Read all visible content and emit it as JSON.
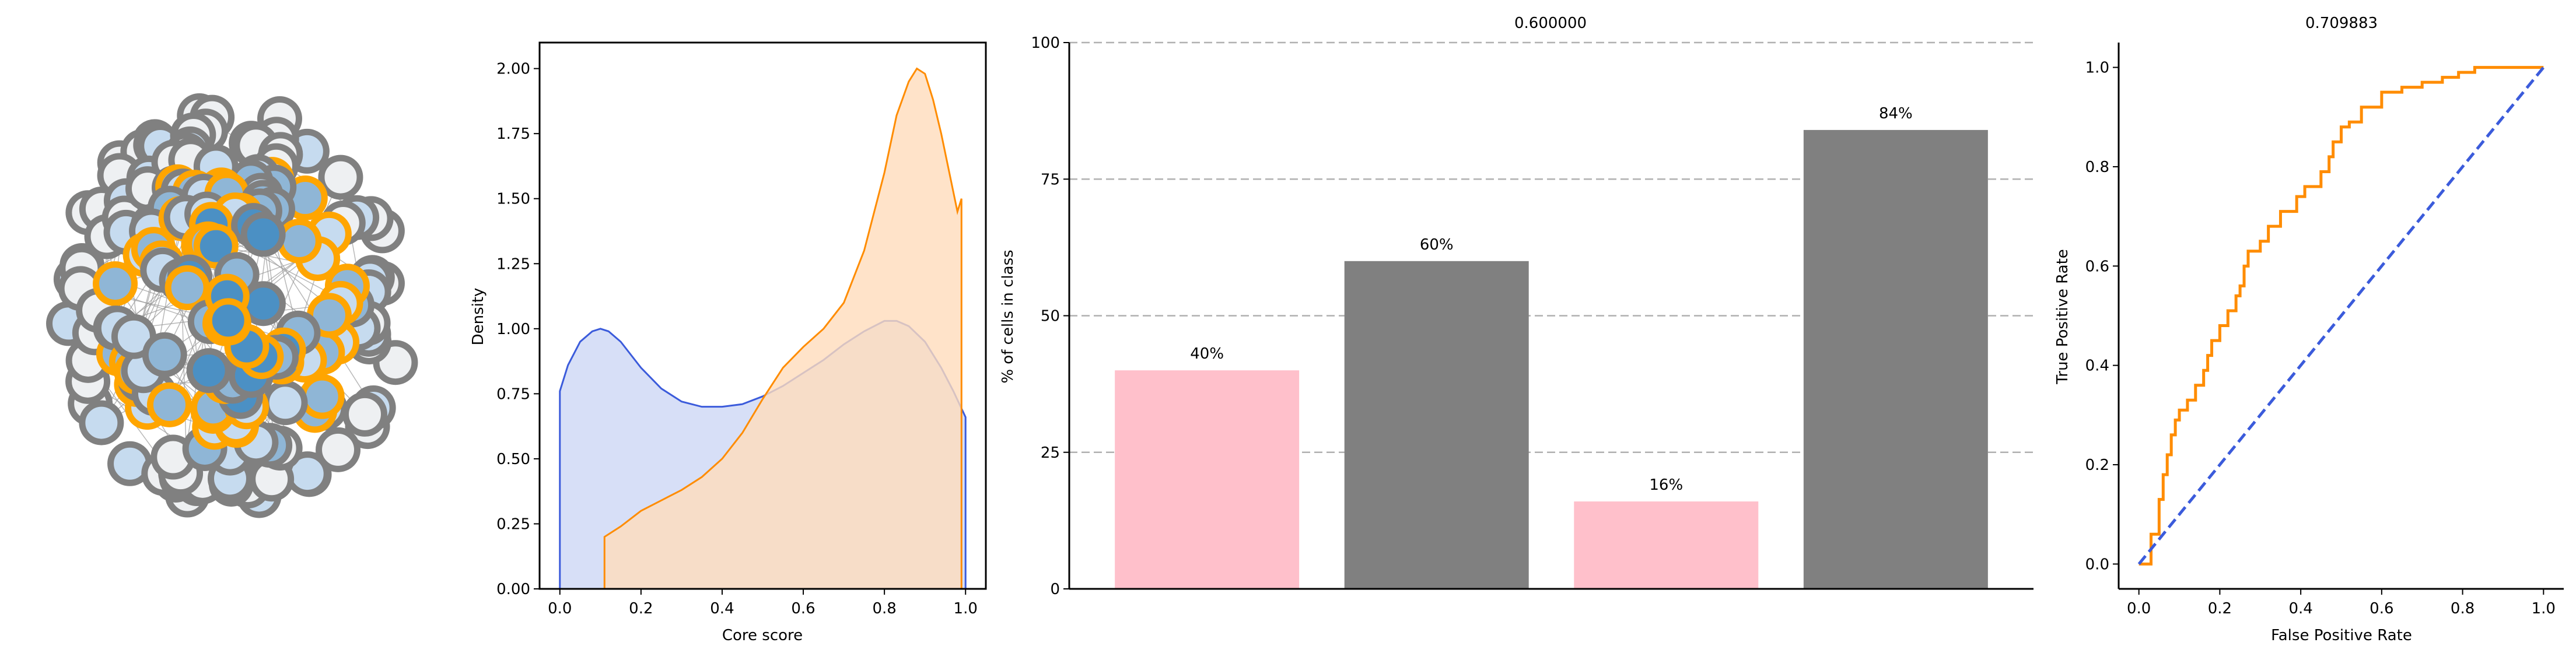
{
  "chart_data": [
    {
      "type": "network",
      "panel": "network",
      "node_colors": {
        "core_fill_dark": "#4b90c4",
        "core_fill_light": "#8fb6d6",
        "periphery_fill_light": "#c6dbef",
        "periphery_fill": "#eef0f2",
        "border_core": "#ffa500",
        "border_periphery": "#808080",
        "edge": "#9a9a9a"
      }
    },
    {
      "type": "area",
      "panel": "density",
      "xlabel": "Core score",
      "ylabel": "Density",
      "xlim": [
        -0.05,
        1.05
      ],
      "ylim": [
        0,
        2.1
      ],
      "xticks": [
        "0.0",
        "0.2",
        "0.4",
        "0.6",
        "0.8",
        "1.0"
      ],
      "yticks": [
        "0.00",
        "0.25",
        "0.50",
        "0.75",
        "1.00",
        "1.25",
        "1.50",
        "1.75",
        "2.00"
      ],
      "series": [
        {
          "color": "#3b5bdb",
          "fill": "#cdd7f5",
          "x": [
            0.0,
            0.02,
            0.05,
            0.08,
            0.1,
            0.12,
            0.15,
            0.2,
            0.25,
            0.3,
            0.35,
            0.4,
            0.45,
            0.5,
            0.55,
            0.6,
            0.65,
            0.7,
            0.75,
            0.8,
            0.83,
            0.86,
            0.9,
            0.94,
            0.97,
            1.0
          ],
          "y": [
            0.76,
            0.86,
            0.95,
            0.99,
            1.0,
            0.99,
            0.95,
            0.85,
            0.77,
            0.72,
            0.7,
            0.7,
            0.71,
            0.74,
            0.78,
            0.83,
            0.88,
            0.94,
            0.99,
            1.03,
            1.03,
            1.01,
            0.95,
            0.85,
            0.76,
            0.66
          ]
        },
        {
          "color": "#ff8c00",
          "fill": "#ffdcbb",
          "x": [
            0.11,
            0.15,
            0.2,
            0.25,
            0.3,
            0.35,
            0.4,
            0.45,
            0.5,
            0.55,
            0.6,
            0.65,
            0.7,
            0.75,
            0.8,
            0.83,
            0.86,
            0.88,
            0.9,
            0.92,
            0.94,
            0.96,
            0.98,
            0.99
          ],
          "y": [
            0.2,
            0.24,
            0.3,
            0.34,
            0.38,
            0.43,
            0.5,
            0.6,
            0.73,
            0.85,
            0.93,
            1.0,
            1.1,
            1.3,
            1.6,
            1.82,
            1.95,
            2.0,
            1.98,
            1.88,
            1.75,
            1.6,
            1.45,
            1.5
          ]
        }
      ]
    },
    {
      "type": "bar",
      "panel": "bars",
      "title": "0.600000",
      "ylabel": "% of cells in class",
      "ylim": [
        0,
        100
      ],
      "yticks": [
        "0",
        "25",
        "50",
        "75",
        "100"
      ],
      "values": [
        40,
        60,
        16,
        84
      ],
      "labels": [
        "40%",
        "60%",
        "16%",
        "84%"
      ],
      "colors": [
        "#ffc0cb",
        "#808080",
        "#ffc0cb",
        "#808080"
      ]
    },
    {
      "type": "line",
      "panel": "roc",
      "title": "0.709883",
      "xlabel": "False Positive Rate",
      "ylabel": "True Positive Rate",
      "xlim": [
        -0.05,
        1.05
      ],
      "ylim": [
        -0.05,
        1.05
      ],
      "xticks": [
        "0.0",
        "0.2",
        "0.4",
        "0.6",
        "0.8",
        "1.0"
      ],
      "yticks": [
        "0.0",
        "0.2",
        "0.4",
        "0.6",
        "0.8",
        "1.0"
      ],
      "series": [
        {
          "color": "#ff8c00",
          "x": [
            0.0,
            0.03,
            0.03,
            0.05,
            0.05,
            0.06,
            0.06,
            0.07,
            0.07,
            0.08,
            0.08,
            0.09,
            0.09,
            0.1,
            0.1,
            0.12,
            0.12,
            0.14,
            0.14,
            0.16,
            0.16,
            0.17,
            0.17,
            0.18,
            0.18,
            0.2,
            0.2,
            0.22,
            0.22,
            0.24,
            0.24,
            0.25,
            0.25,
            0.26,
            0.26,
            0.27,
            0.27,
            0.3,
            0.3,
            0.32,
            0.32,
            0.35,
            0.35,
            0.39,
            0.39,
            0.41,
            0.41,
            0.45,
            0.45,
            0.47,
            0.47,
            0.48,
            0.48,
            0.5,
            0.5,
            0.52,
            0.52,
            0.55,
            0.55,
            0.6,
            0.6,
            0.65,
            0.65,
            0.7,
            0.7,
            0.75,
            0.75,
            0.79,
            0.79,
            0.83,
            0.83,
            0.92,
            0.92,
            1.0
          ],
          "y": [
            0.0,
            0.0,
            0.06,
            0.06,
            0.13,
            0.13,
            0.18,
            0.18,
            0.22,
            0.22,
            0.26,
            0.26,
            0.29,
            0.29,
            0.31,
            0.31,
            0.33,
            0.33,
            0.36,
            0.36,
            0.39,
            0.39,
            0.42,
            0.42,
            0.45,
            0.45,
            0.48,
            0.48,
            0.51,
            0.51,
            0.54,
            0.54,
            0.56,
            0.56,
            0.6,
            0.6,
            0.63,
            0.63,
            0.65,
            0.65,
            0.68,
            0.68,
            0.71,
            0.71,
            0.74,
            0.74,
            0.76,
            0.76,
            0.79,
            0.79,
            0.82,
            0.82,
            0.85,
            0.85,
            0.88,
            0.88,
            0.89,
            0.89,
            0.92,
            0.92,
            0.95,
            0.95,
            0.96,
            0.96,
            0.97,
            0.97,
            0.98,
            0.98,
            0.99,
            0.99,
            1.0,
            1.0,
            1.0,
            1.0
          ]
        },
        {
          "color": "#3b5bdb",
          "dashed": true,
          "x": [
            0.0,
            1.0
          ],
          "y": [
            0.0,
            1.0
          ]
        }
      ]
    }
  ]
}
